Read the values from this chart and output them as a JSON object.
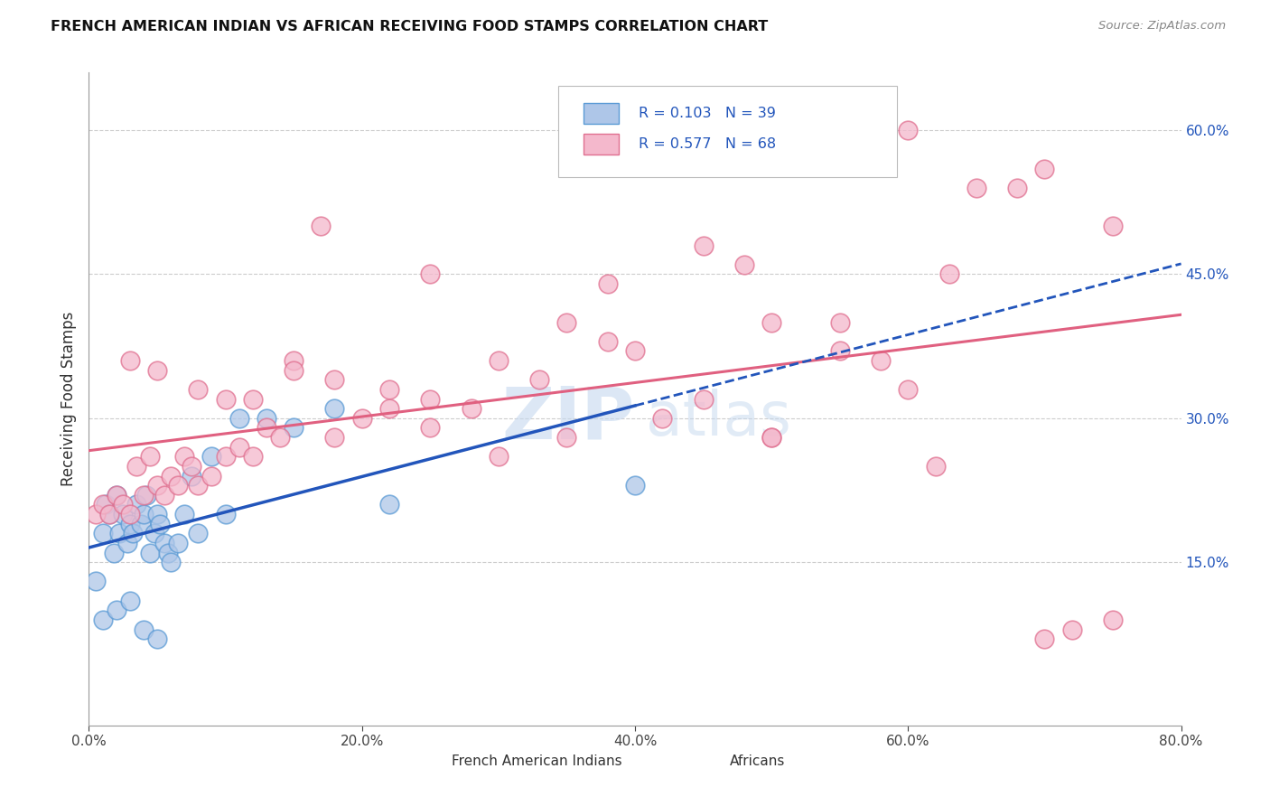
{
  "title": "FRENCH AMERICAN INDIAN VS AFRICAN RECEIVING FOOD STAMPS CORRELATION CHART",
  "source": "Source: ZipAtlas.com",
  "ylabel": "Receiving Food Stamps",
  "ylabel_right_ticks": [
    "15.0%",
    "30.0%",
    "45.0%",
    "60.0%"
  ],
  "ylabel_right_values": [
    15.0,
    30.0,
    45.0,
    60.0
  ],
  "xlim": [
    0.0,
    80.0
  ],
  "ylim": [
    -2.0,
    66.0
  ],
  "color_blue_fill": "#aec6e8",
  "color_blue_edge": "#5b9bd5",
  "color_pink_fill": "#f4b8cc",
  "color_pink_edge": "#e07090",
  "color_trend_blue": "#2255bb",
  "color_trend_pink": "#e06080",
  "watermark": "ZIPatlas",
  "watermark_color": "#c5d8ef",
  "blue_scatter_x": [
    0.5,
    1.0,
    1.2,
    1.5,
    1.8,
    2.0,
    2.2,
    2.5,
    2.8,
    3.0,
    3.2,
    3.5,
    3.8,
    4.0,
    4.2,
    4.5,
    4.8,
    5.0,
    5.2,
    5.5,
    5.8,
    6.0,
    6.5,
    7.0,
    7.5,
    8.0,
    9.0,
    10.0,
    11.0,
    13.0,
    15.0,
    18.0,
    22.0,
    40.0,
    1.0,
    2.0,
    3.0,
    4.0,
    5.0
  ],
  "blue_scatter_y": [
    13.0,
    18.0,
    21.0,
    20.0,
    16.0,
    22.0,
    18.0,
    20.0,
    17.0,
    19.0,
    18.0,
    21.0,
    19.0,
    20.0,
    22.0,
    16.0,
    18.0,
    20.0,
    19.0,
    17.0,
    16.0,
    15.0,
    17.0,
    20.0,
    24.0,
    18.0,
    26.0,
    20.0,
    30.0,
    30.0,
    29.0,
    31.0,
    21.0,
    23.0,
    9.0,
    10.0,
    11.0,
    8.0,
    7.0
  ],
  "blue_solid_end_x": 40.0,
  "pink_scatter_x": [
    0.5,
    1.0,
    1.5,
    2.0,
    2.5,
    3.0,
    3.5,
    4.0,
    4.5,
    5.0,
    5.5,
    6.0,
    6.5,
    7.0,
    7.5,
    8.0,
    9.0,
    10.0,
    11.0,
    12.0,
    13.0,
    14.0,
    15.0,
    17.0,
    18.0,
    20.0,
    22.0,
    25.0,
    28.0,
    30.0,
    33.0,
    35.0,
    38.0,
    42.0,
    45.0,
    50.0,
    55.0,
    58.0,
    60.0,
    63.0,
    68.0,
    70.0,
    72.0,
    75.0,
    3.0,
    5.0,
    8.0,
    12.0,
    18.0,
    25.0,
    35.0,
    45.0,
    55.0,
    65.0,
    75.0,
    10.0,
    15.0,
    22.0,
    30.0,
    40.0,
    50.0,
    60.0,
    70.0,
    38.0,
    48.0,
    25.0,
    50.0,
    62.0
  ],
  "pink_scatter_y": [
    20.0,
    21.0,
    20.0,
    22.0,
    21.0,
    20.0,
    25.0,
    22.0,
    26.0,
    23.0,
    22.0,
    24.0,
    23.0,
    26.0,
    25.0,
    23.0,
    24.0,
    26.0,
    27.0,
    26.0,
    29.0,
    28.0,
    36.0,
    50.0,
    28.0,
    30.0,
    31.0,
    29.0,
    31.0,
    26.0,
    34.0,
    28.0,
    38.0,
    30.0,
    32.0,
    28.0,
    37.0,
    36.0,
    33.0,
    45.0,
    54.0,
    7.0,
    8.0,
    9.0,
    36.0,
    35.0,
    33.0,
    32.0,
    34.0,
    32.0,
    40.0,
    48.0,
    40.0,
    54.0,
    50.0,
    32.0,
    35.0,
    33.0,
    36.0,
    37.0,
    40.0,
    60.0,
    56.0,
    44.0,
    46.0,
    45.0,
    28.0,
    25.0
  ],
  "legend_label_1": "French American Indians",
  "legend_label_2": "Africans",
  "bg_color": "#ffffff",
  "grid_color": "#cccccc"
}
